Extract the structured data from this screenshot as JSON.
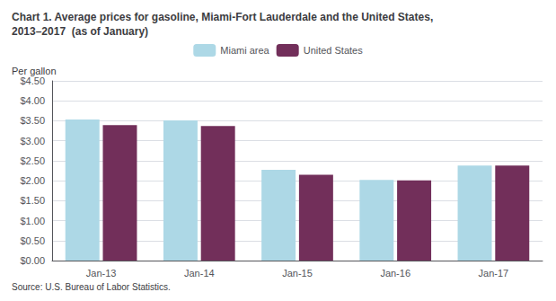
{
  "chart_data": {
    "type": "bar",
    "title": "Chart 1. Average prices for gasoline, Miami-Fort Lauderdale and the United States,\n2013–2017  (as of January)",
    "ylabel": "Per gallon",
    "annotations": [
      "Source: U.S. Bureau of Labor Statistics."
    ],
    "categories": [
      "Jan-13",
      "Jan-14",
      "Jan-15",
      "Jan-16",
      "Jan-17"
    ],
    "series": [
      {
        "name": "Miami area",
        "color": "#ADD8E6",
        "values": [
          3.53,
          3.51,
          2.27,
          2.02,
          2.38
        ]
      },
      {
        "name": "United States",
        "color": "#722F5A",
        "values": [
          3.39,
          3.37,
          2.15,
          2.01,
          2.38
        ]
      }
    ],
    "ylim": [
      0,
      4.5
    ],
    "yticks": [
      {
        "value": 0.0,
        "label": "$0.00"
      },
      {
        "value": 0.5,
        "label": "$0.50"
      },
      {
        "value": 1.0,
        "label": "$1.00"
      },
      {
        "value": 1.5,
        "label": "$1.50"
      },
      {
        "value": 2.0,
        "label": "$2.00"
      },
      {
        "value": 2.5,
        "label": "$2.50"
      },
      {
        "value": 3.0,
        "label": "$3.00"
      },
      {
        "value": 3.5,
        "label": "$3.50"
      },
      {
        "value": 4.0,
        "label": "$4.00"
      },
      {
        "value": 4.5,
        "label": "$4.50"
      }
    ],
    "grid": true,
    "legend": "top"
  }
}
